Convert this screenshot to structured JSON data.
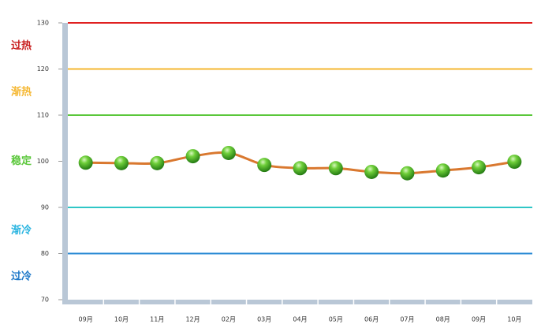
{
  "chart_data": {
    "type": "line",
    "categories": [
      "09月",
      "10月",
      "11月",
      "12月",
      "02月",
      "03月",
      "04月",
      "05月",
      "06月",
      "07月",
      "08月",
      "09月",
      "10月"
    ],
    "series": [
      {
        "color": "#d9782f",
        "values": [
          99.7,
          99.6,
          99.6,
          101.1,
          101.8,
          99.2,
          98.5,
          98.5,
          97.7,
          97.4,
          98.0,
          98.7,
          99.9
        ]
      }
    ],
    "ylim": [
      70,
      130
    ],
    "yticks": [
      70,
      80,
      90,
      100,
      110,
      120,
      130
    ],
    "reference_lines": [
      {
        "value": 130,
        "color": "#e02020"
      },
      {
        "value": 120,
        "color": "#f5b731"
      },
      {
        "value": 110,
        "color": "#5ac73a"
      },
      {
        "value": 90,
        "color": "#2fc6c6"
      },
      {
        "value": 80,
        "color": "#2a8ad4"
      }
    ],
    "zones": [
      {
        "label": "过热",
        "color": "#c81e1e",
        "range": [
          120,
          130
        ]
      },
      {
        "label": "渐热",
        "color": "#f5b731",
        "range": [
          110,
          120
        ]
      },
      {
        "label": "稳定",
        "color": "#5ac73a",
        "range": [
          90,
          110
        ]
      },
      {
        "label": "渐冷",
        "color": "#28b4e0",
        "range": [
          80,
          90
        ]
      },
      {
        "label": "过冷",
        "color": "#1e78c8",
        "range": [
          70,
          80
        ]
      }
    ]
  }
}
